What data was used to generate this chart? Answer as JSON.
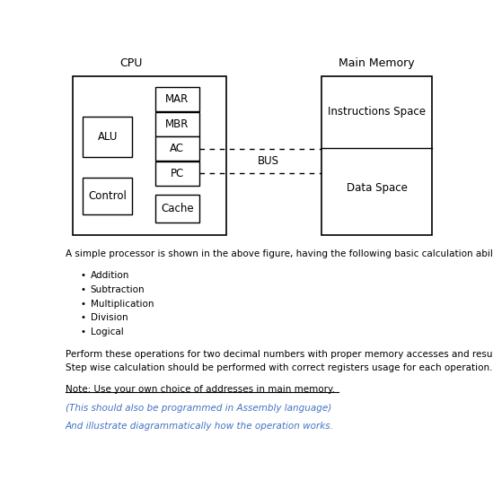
{
  "title_cpu": "CPU",
  "title_memory": "Main Memory",
  "alu_label": "ALU",
  "control_label": "Control",
  "mar_label": "MAR",
  "mbr_label": "MBR",
  "ac_label": "AC",
  "pc_label": "PC",
  "cache_label": "Cache",
  "instr_label": "Instructions Space",
  "data_label": "Data Space",
  "bus_label": "BUS",
  "note_text": "Note: Use your own choice of addresses in main memory.",
  "italic_text1": "(This should also be programmed in Assembly language)",
  "italic_text2": "And illustrate diagrammatically how the operation works.",
  "body_text1": "A simple processor is shown in the above figure, having the following basic calculation ability:",
  "body_text2_line1": "Perform these operations for two decimal numbers with proper memory accesses and results storage.",
  "body_text2_line2": "Step wise calculation should be performed with correct registers usage for each operation.",
  "bullet_items": [
    "Addition",
    "Subtraction",
    "Multiplication",
    "Division",
    "Logical"
  ],
  "blue_color": "#4472C4",
  "black_color": "#000000",
  "bg_color": "#ffffff"
}
